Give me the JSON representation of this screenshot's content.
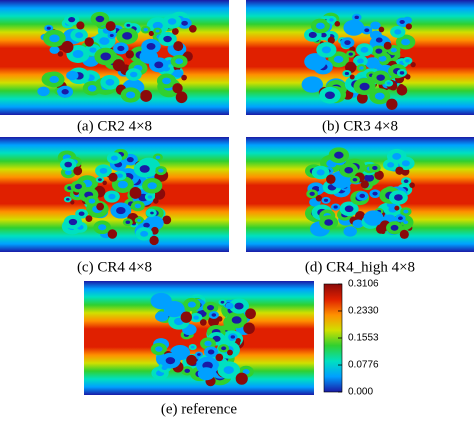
{
  "panels": [
    {
      "caption": "(a) CR2 4×8"
    },
    {
      "caption": "(b) CR3 4×8"
    },
    {
      "caption": "(c) CR4 4×8"
    },
    {
      "caption": "(d) CR4_high 4×8"
    },
    {
      "caption": "(e) reference"
    }
  ],
  "colorbar": {
    "lim": [
      0,
      0.3106
    ],
    "ticks": [
      {
        "value": 0,
        "label": "0.000"
      },
      0.0776,
      0.1553,
      {
        "value": 0.233,
        "label": "0.2330"
      },
      0.3106
    ],
    "colors": [
      "#1a1aa6",
      "#00a0ff",
      "#00e0c0",
      "#30d030",
      "#d0e000",
      "#ff9000",
      "#e02000",
      "#8a0a0a"
    ]
  }
}
